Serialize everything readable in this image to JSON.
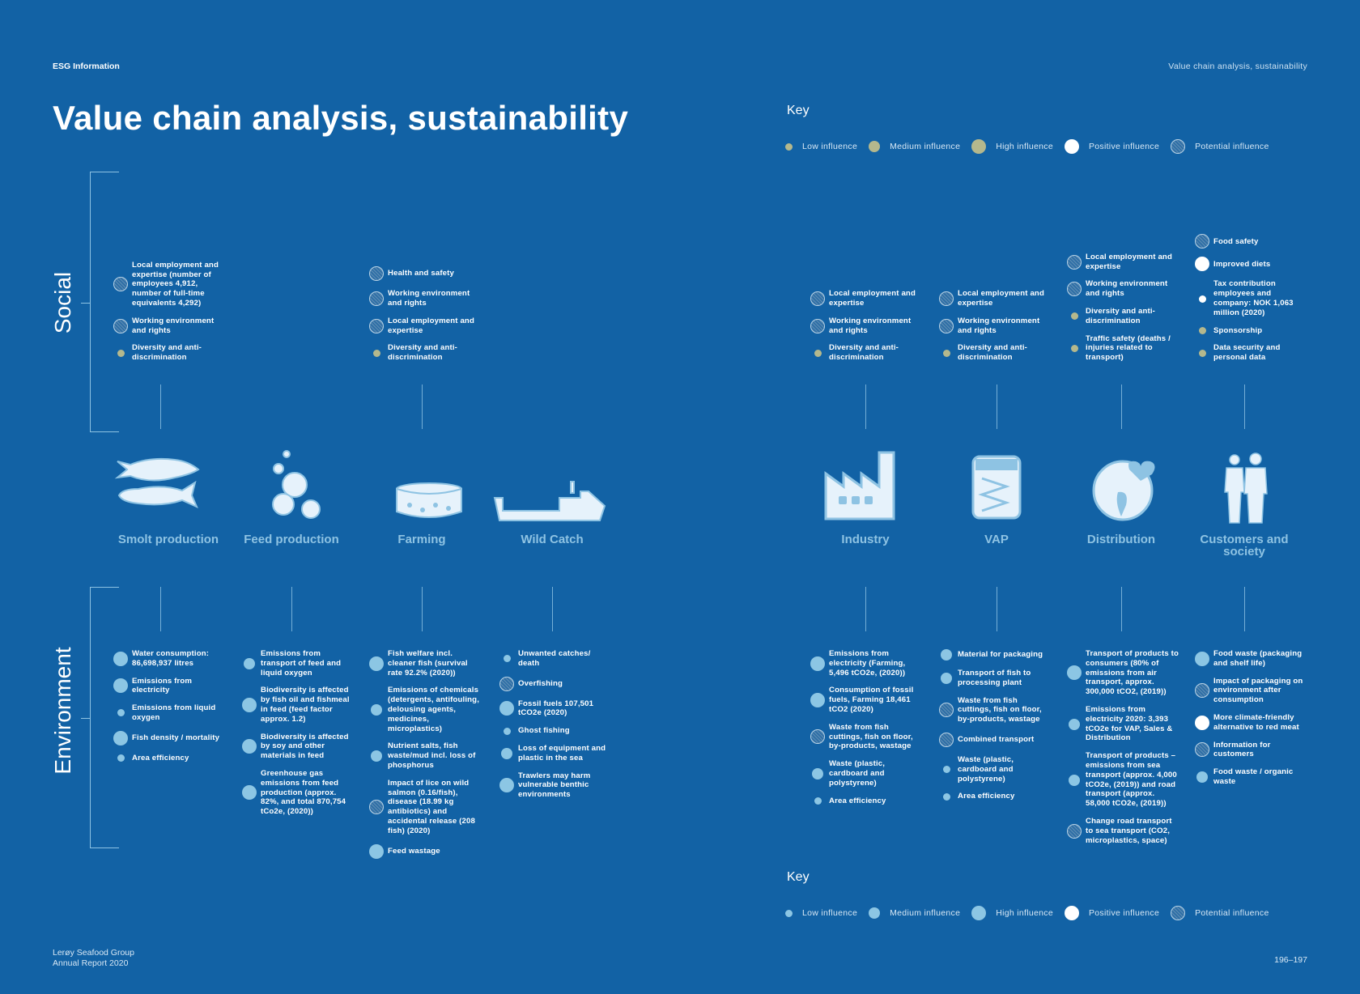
{
  "header": {
    "section": "ESG Information",
    "running_title": "Value chain analysis, sustainability"
  },
  "title": "Value chain analysis, sustainability",
  "colors": {
    "background": "#1262a5",
    "social_dot": "#b4b88d",
    "environment_dot": "#8cc6e4",
    "positive": "#ffffff",
    "label": "#8ec3e3"
  },
  "key": {
    "title": "Key",
    "items": [
      {
        "type": "low",
        "label": "Low influence"
      },
      {
        "type": "medium",
        "label": "Medium influence"
      },
      {
        "type": "high",
        "label": "High influence"
      },
      {
        "type": "positive",
        "label": "Positive influence"
      },
      {
        "type": "potential",
        "label": "Potential influence"
      }
    ]
  },
  "sections": {
    "social": "Social",
    "environment": "Environment"
  },
  "stages": [
    {
      "id": "smolt",
      "label": "Smolt production",
      "icon": "salmon-icon"
    },
    {
      "id": "feed",
      "label": "Feed production",
      "icon": "feed-pellets-icon"
    },
    {
      "id": "farming",
      "label": "Farming",
      "icon": "fish-pen-icon"
    },
    {
      "id": "wild",
      "label": "Wild Catch",
      "icon": "trawler-ship-icon"
    },
    {
      "id": "industry",
      "label": "Industry",
      "icon": "factory-icon"
    },
    {
      "id": "vap",
      "label": "VAP",
      "icon": "fish-package-icon"
    },
    {
      "id": "distribution",
      "label": "Distribution",
      "icon": "globe-heart-icon"
    },
    {
      "id": "customers",
      "label": "Customers and society",
      "icon": "people-icon"
    }
  ],
  "social": {
    "smolt": [
      {
        "text": "Local employment and expertise (number of employees 4,912, number of full-time equivalents 4,292)",
        "type": "potential"
      },
      {
        "text": "Working environment and rights",
        "type": "potential"
      },
      {
        "text": "Diversity and anti-discrimination",
        "type": "low"
      }
    ],
    "farming": [
      {
        "text": "Health and safety",
        "type": "potential"
      },
      {
        "text": "Working environment and rights",
        "type": "potential"
      },
      {
        "text": "Local employment and expertise",
        "type": "potential"
      },
      {
        "text": "Diversity and anti-discrimination",
        "type": "low"
      }
    ],
    "industry": [
      {
        "text": "Local employment and expertise",
        "type": "potential"
      },
      {
        "text": "Working environment and rights",
        "type": "potential"
      },
      {
        "text": "Diversity and anti-discrimination",
        "type": "low"
      }
    ],
    "vap": [
      {
        "text": "Local employment and expertise",
        "type": "potential"
      },
      {
        "text": "Working environment and rights",
        "type": "potential"
      },
      {
        "text": "Diversity and anti-discrimination",
        "type": "low"
      }
    ],
    "distribution": [
      {
        "text": "Local employment and expertise",
        "type": "potential"
      },
      {
        "text": "Working environment and rights",
        "type": "potential"
      },
      {
        "text": "Diversity and anti-discrimination",
        "type": "low"
      },
      {
        "text": "Traffic safety (deaths / injuries related to transport)",
        "type": "low"
      }
    ],
    "customers": [
      {
        "text": "Food safety",
        "type": "potential"
      },
      {
        "text": "Improved diets",
        "type": "positive"
      },
      {
        "text": "Tax contribution employees and company: NOK 1,063 million (2020)",
        "type": "positive-small"
      },
      {
        "text": "Sponsorship",
        "type": "low"
      },
      {
        "text": "Data security and personal data",
        "type": "low"
      }
    ]
  },
  "environment": {
    "smolt": [
      {
        "text": "Water consumption: 86,698,937 litres",
        "type": "high"
      },
      {
        "text": "Emissions from electricity",
        "type": "high"
      },
      {
        "text": "Emissions from liquid oxygen",
        "type": "low"
      },
      {
        "text": "Fish density / mortality",
        "type": "high"
      },
      {
        "text": "Area efficiency",
        "type": "low"
      }
    ],
    "feed": [
      {
        "text": "Emissions from transport of feed and liquid oxygen",
        "type": "medium"
      },
      {
        "text": "Biodiversity is affected by fish oil and fishmeal in feed (feed factor approx. 1.2)",
        "type": "high"
      },
      {
        "text": "Biodiversity is affected by soy and other materials in feed",
        "type": "high"
      },
      {
        "text": "Greenhouse gas emissions from feed production (approx. 82%, and total 870,754 tCo2e, (2020))",
        "type": "high"
      }
    ],
    "farming": [
      {
        "text": "Fish welfare incl. cleaner fish (survival rate 92.2% (2020))",
        "type": "high"
      },
      {
        "text": "Emissions of chemicals (detergents, antifouling, delousing agents, medicines, microplastics)",
        "type": "medium"
      },
      {
        "text": "Nutrient salts, fish waste/mud incl. loss of phosphorus",
        "type": "medium"
      },
      {
        "text": "Impact of lice on wild salmon (0.16/fish), disease (18.99 kg antibiotics) and accidental release (208 fish) (2020)",
        "type": "potential"
      },
      {
        "text": "Feed wastage",
        "type": "high"
      }
    ],
    "wild": [
      {
        "text": "Unwanted catches/ death",
        "type": "low"
      },
      {
        "text": "Overfishing",
        "type": "potential"
      },
      {
        "text": "Fossil fuels 107,501 tCO2e (2020)",
        "type": "high"
      },
      {
        "text": "Ghost fishing",
        "type": "low"
      },
      {
        "text": "Loss of equipment and plastic in the sea",
        "type": "medium"
      },
      {
        "text": "Trawlers may harm vulnerable benthic environments",
        "type": "high"
      }
    ],
    "industry": [
      {
        "text": "Emissions from electricity (Farming, 5,496 tCO2e, (2020))",
        "type": "high"
      },
      {
        "text": "Consumption of fossil fuels, Farming 18,461 tCO2 (2020)",
        "type": "high"
      },
      {
        "text": "Waste from fish cuttings, fish on floor, by-products, wastage",
        "type": "potential"
      },
      {
        "text": "Waste (plastic, cardboard and polystyrene)",
        "type": "medium"
      },
      {
        "text": "Area efficiency",
        "type": "low"
      }
    ],
    "vap": [
      {
        "text": "Material for packaging",
        "type": "medium"
      },
      {
        "text": "Transport of fish to processing plant",
        "type": "medium"
      },
      {
        "text": "Waste from fish cuttings, fish on floor, by-products, wastage",
        "type": "potential"
      },
      {
        "text": "Combined transport",
        "type": "potential"
      },
      {
        "text": "Waste (plastic, cardboard and polystyrene)",
        "type": "low"
      },
      {
        "text": "Area efficiency",
        "type": "low"
      }
    ],
    "distribution": [
      {
        "text": "Transport of products to consumers (80% of emissions from air transport, approx. 300,000 tCO2, (2019))",
        "type": "high"
      },
      {
        "text": "Emissions from electricity 2020: 3,393 tCO2e for VAP, Sales & Distribution",
        "type": "medium"
      },
      {
        "text": "Transport of products – emissions from sea transport (approx. 4,000 tCO2e, (2019)) and road transport (approx. 58,000 tCO2e, (2019))",
        "type": "medium"
      },
      {
        "text": "Change road transport to sea transport (CO2, microplastics, space)",
        "type": "potential"
      }
    ],
    "customers": [
      {
        "text": "Food waste (packaging and shelf life)",
        "type": "high"
      },
      {
        "text": "Impact of packaging on environment after consumption",
        "type": "potential"
      },
      {
        "text": "More climate-friendly alternative to red meat",
        "type": "positive"
      },
      {
        "text": "Information for customers",
        "type": "potential"
      },
      {
        "text": "Food waste / organic waste",
        "type": "medium"
      }
    ]
  },
  "footer": {
    "line1": "Lerøy Seafood Group",
    "line2": "Annual Report 2020",
    "pages": "196–197"
  }
}
